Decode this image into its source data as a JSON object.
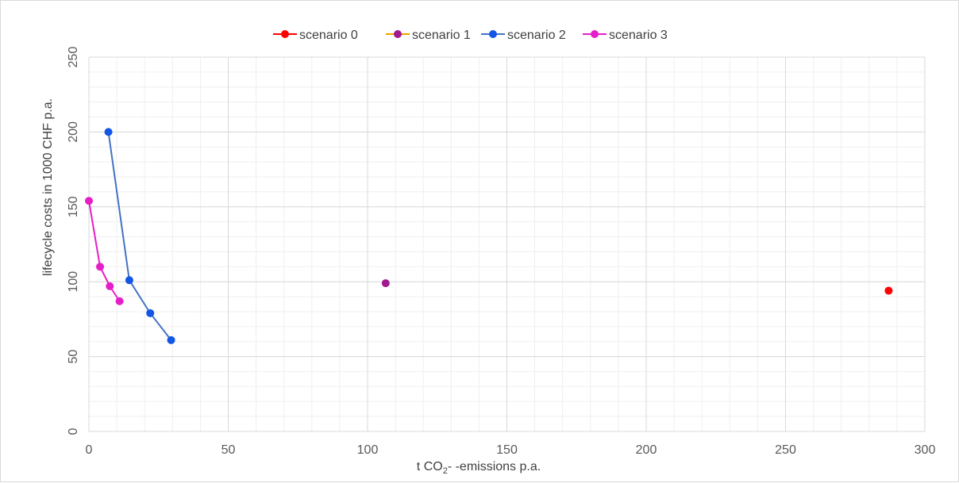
{
  "chart_data": {
    "type": "scatter",
    "title": "",
    "xlabel": "t CO₂- -emissions p.a.",
    "xlabel_parts": {
      "before": "t CO",
      "sub": "2",
      "after": "- -emissions p.a."
    },
    "ylabel": "lifecycle costs in 1000 CHF p.a.",
    "xlim": [
      0,
      300
    ],
    "ylim": [
      0,
      250
    ],
    "xticks": [
      0,
      50,
      100,
      150,
      200,
      250,
      300
    ],
    "yticks": [
      0,
      50,
      100,
      150,
      200,
      250
    ],
    "grid": true,
    "legend_position": "top",
    "series": [
      {
        "name": "scenario 0",
        "color": "#ff0000",
        "line_color": "#ff0000",
        "connected": true,
        "points": [
          [
            287,
            94
          ]
        ]
      },
      {
        "name": "scenario 1",
        "color": "#a0198f",
        "line_color": "#e8a200",
        "connected": true,
        "points": [
          [
            106.5,
            99
          ]
        ]
      },
      {
        "name": "scenario 2",
        "color": "#1256e6",
        "line_color": "#4472c4",
        "connected": true,
        "points": [
          [
            7,
            200
          ],
          [
            14.5,
            101
          ],
          [
            22,
            79
          ],
          [
            29.5,
            61
          ]
        ]
      },
      {
        "name": "scenario 3",
        "color": "#e61ec8",
        "line_color": "#e61ec8",
        "connected": true,
        "points": [
          [
            0,
            154
          ],
          [
            4,
            110
          ],
          [
            7.5,
            97
          ],
          [
            11,
            87
          ]
        ]
      }
    ]
  }
}
